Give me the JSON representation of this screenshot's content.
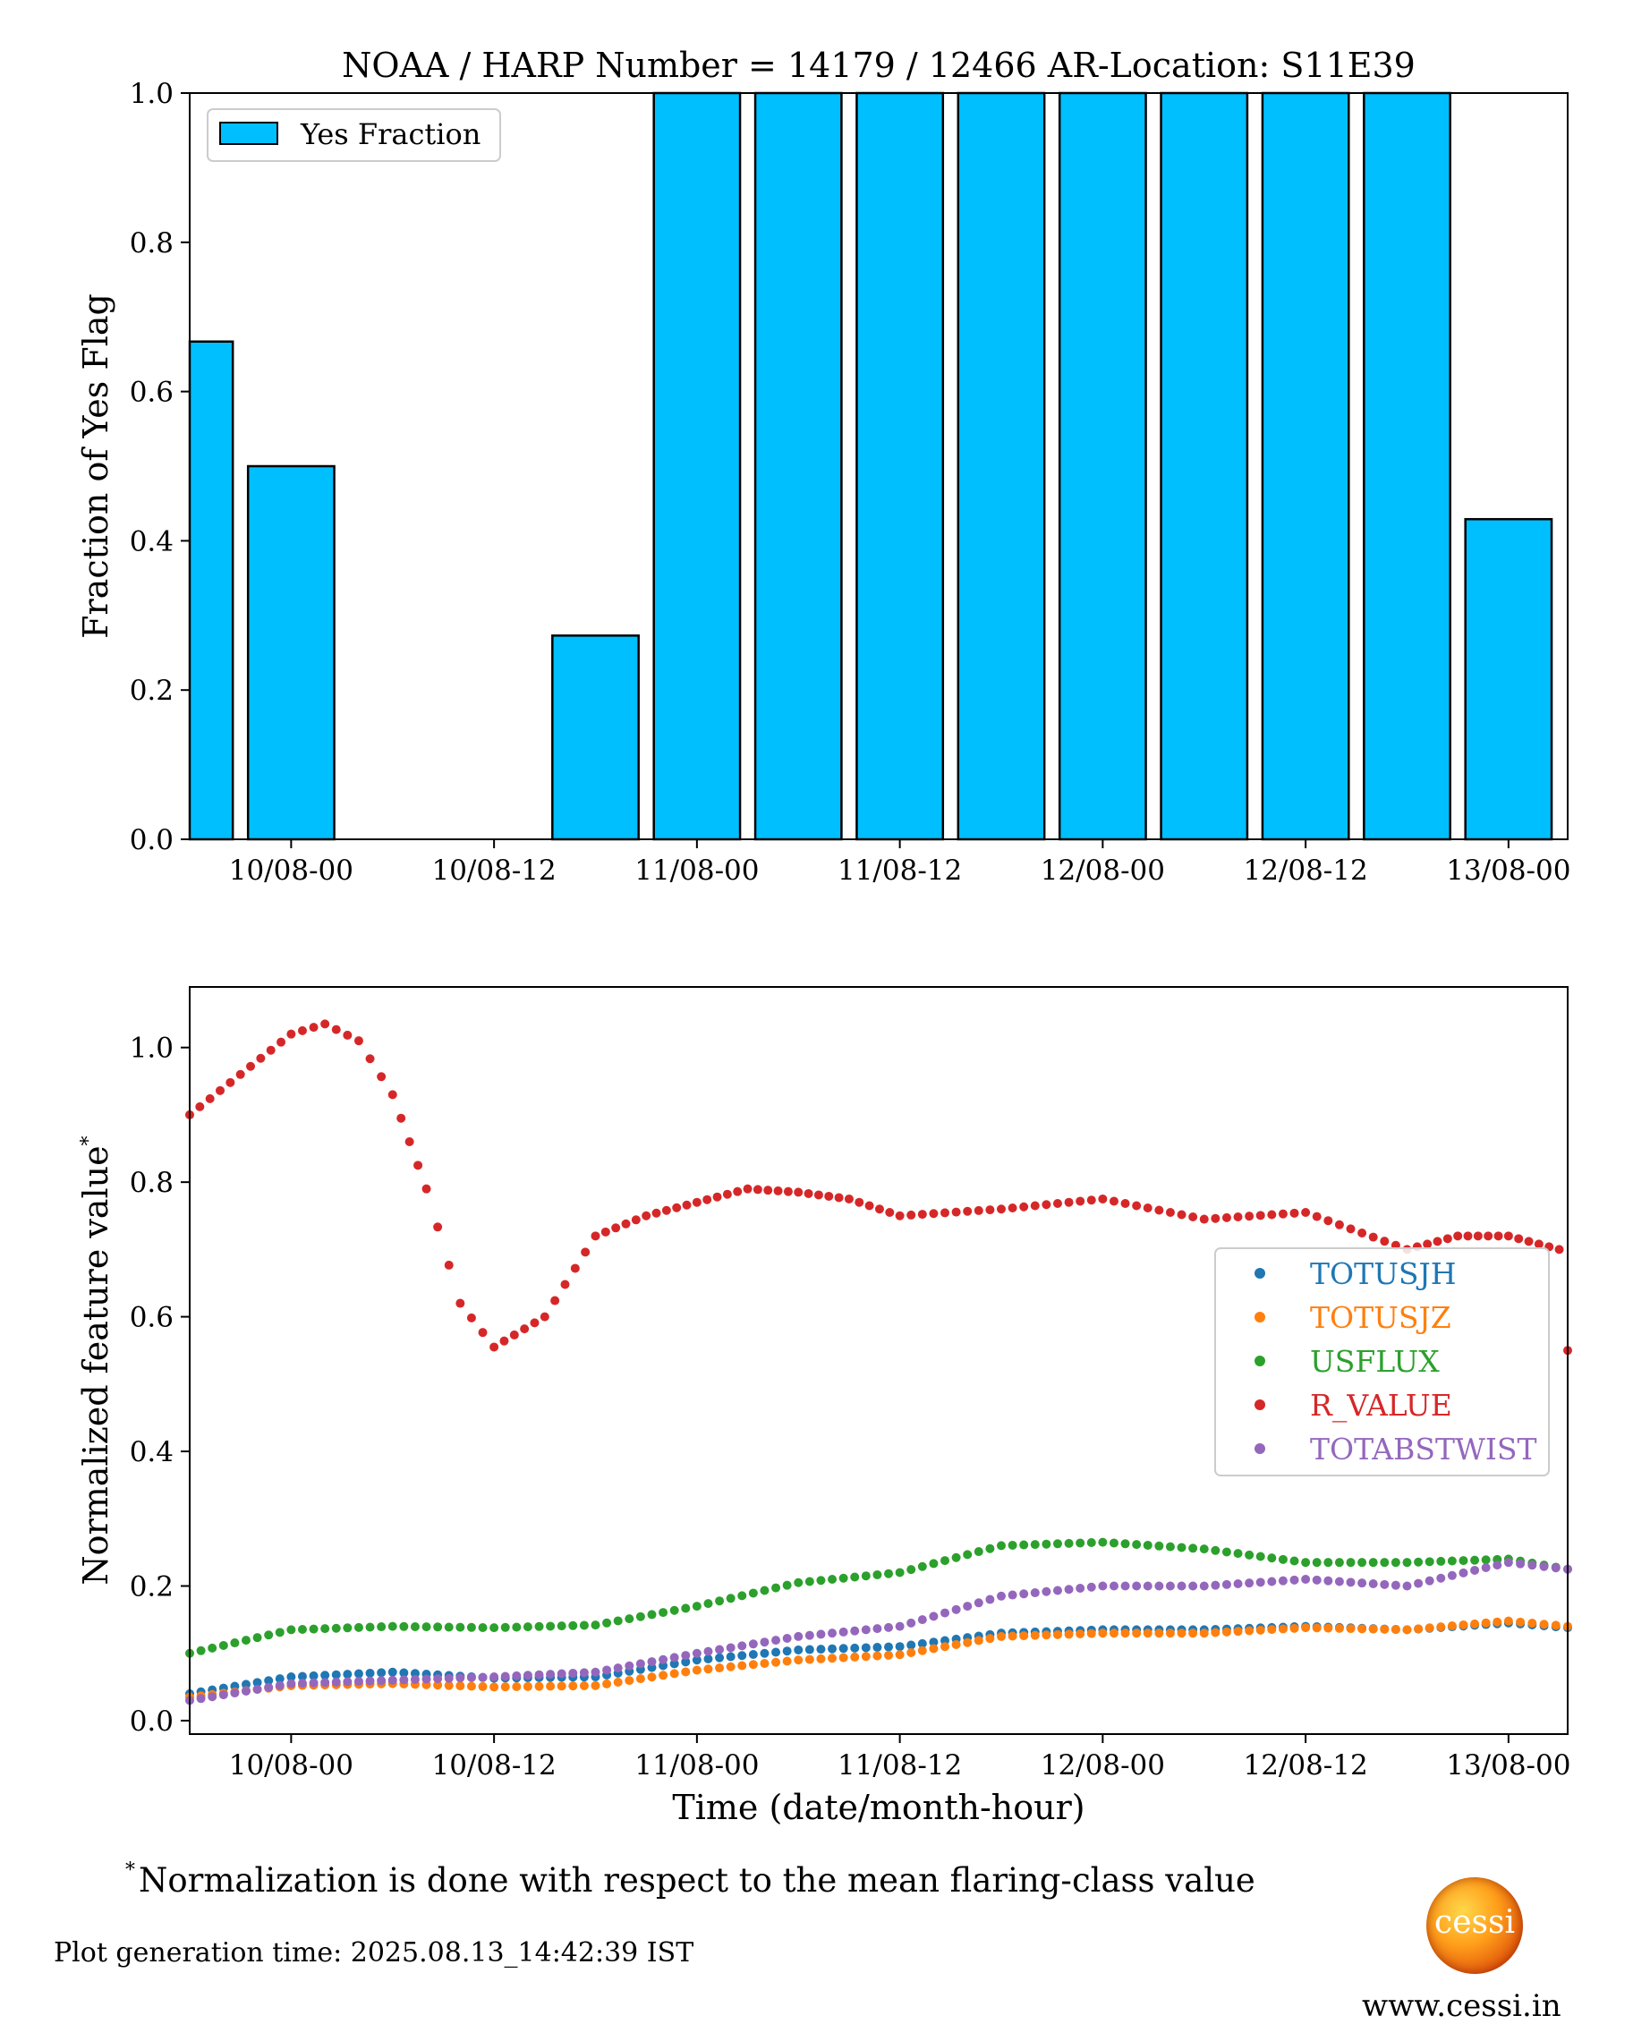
{
  "chart_data": [
    {
      "type": "bar",
      "title": "NOAA / HARP Number = 14179 / 12466      AR-Location: S11E39",
      "xlabel": "",
      "ylabel": "Fraction of Yes Flag",
      "ylim": [
        0,
        1.0
      ],
      "x_start": "2025-08-09T18:00",
      "x_end": "2025-08-13T03:30",
      "xtick_labels": [
        "10/08-00",
        "10/08-12",
        "11/08-00",
        "11/08-12",
        "12/08-00",
        "12/08-12",
        "13/08-00"
      ],
      "ytick_labels": [
        "0.0",
        "0.2",
        "0.4",
        "0.6",
        "0.8",
        "1.0"
      ],
      "legend": {
        "position": "top-left",
        "entries": [
          "Yes Fraction"
        ]
      },
      "bar_color": "#00bfff",
      "categories": [
        "2025-08-09T18:00",
        "2025-08-10T00:00",
        "2025-08-10T06:00",
        "2025-08-10T12:00",
        "2025-08-10T18:00",
        "2025-08-11T00:00",
        "2025-08-11T06:00",
        "2025-08-11T12:00",
        "2025-08-11T18:00",
        "2025-08-12T00:00",
        "2025-08-12T06:00",
        "2025-08-12T12:00",
        "2025-08-12T18:00",
        "2025-08-13T00:00"
      ],
      "series": [
        {
          "name": "Yes Fraction",
          "values": [
            0.667,
            0.5,
            0,
            0,
            0.273,
            1.0,
            1.0,
            1.0,
            1.0,
            1.0,
            1.0,
            1.0,
            1.0,
            0.429
          ]
        }
      ]
    },
    {
      "type": "scatter",
      "xlabel": "Time (date/month-hour)",
      "ylabel": "Normalized feature value",
      "ylabel_superscript": "*",
      "ylim": [
        -0.02,
        1.09
      ],
      "x_start": "2025-08-09T18:00",
      "x_end": "2025-08-13T03:30",
      "xtick_labels": [
        "10/08-00",
        "10/08-12",
        "11/08-00",
        "11/08-12",
        "12/08-00",
        "12/08-12",
        "13/08-00"
      ],
      "ytick_labels": [
        "0.0",
        "0.2",
        "0.4",
        "0.6",
        "0.8",
        "1.0"
      ],
      "legend": {
        "position": "center-right",
        "entries": [
          "TOTUSJH",
          "TOTUSJZ",
          "USFLUX",
          "R_VALUE",
          "TOTABSTWIST"
        ]
      },
      "series": [
        {
          "name": "TOTUSJH",
          "color": "#1f77b4",
          "x": [
            "2025-08-09T18:00",
            "2025-08-10T00:00",
            "2025-08-10T06:00",
            "2025-08-10T12:00",
            "2025-08-10T18:00",
            "2025-08-11T00:00",
            "2025-08-11T06:00",
            "2025-08-11T12:00",
            "2025-08-11T18:00",
            "2025-08-12T00:00",
            "2025-08-12T06:00",
            "2025-08-12T12:00",
            "2025-08-12T18:00",
            "2025-08-13T00:00",
            "2025-08-13T03:30"
          ],
          "y": [
            0.04,
            0.065,
            0.072,
            0.063,
            0.065,
            0.09,
            0.105,
            0.11,
            0.13,
            0.135,
            0.135,
            0.14,
            0.135,
            0.145,
            0.138
          ]
        },
        {
          "name": "TOTUSJZ",
          "color": "#ff7f0e",
          "x": [
            "2025-08-09T18:00",
            "2025-08-10T00:00",
            "2025-08-10T06:00",
            "2025-08-10T12:00",
            "2025-08-10T18:00",
            "2025-08-11T00:00",
            "2025-08-11T06:00",
            "2025-08-11T12:00",
            "2025-08-11T18:00",
            "2025-08-12T00:00",
            "2025-08-12T06:00",
            "2025-08-12T12:00",
            "2025-08-12T18:00",
            "2025-08-13T00:00",
            "2025-08-13T03:30"
          ],
          "y": [
            0.035,
            0.052,
            0.055,
            0.05,
            0.052,
            0.075,
            0.09,
            0.098,
            0.125,
            0.13,
            0.13,
            0.138,
            0.135,
            0.148,
            0.14
          ]
        },
        {
          "name": "USFLUX",
          "color": "#2ca02c",
          "x": [
            "2025-08-09T18:00",
            "2025-08-10T00:00",
            "2025-08-10T06:00",
            "2025-08-10T12:00",
            "2025-08-10T18:00",
            "2025-08-11T00:00",
            "2025-08-11T06:00",
            "2025-08-11T12:00",
            "2025-08-11T18:00",
            "2025-08-12T00:00",
            "2025-08-12T06:00",
            "2025-08-12T12:00",
            "2025-08-12T18:00",
            "2025-08-13T00:00",
            "2025-08-13T03:30"
          ],
          "y": [
            0.1,
            0.135,
            0.14,
            0.138,
            0.142,
            0.17,
            0.205,
            0.22,
            0.26,
            0.265,
            0.255,
            0.235,
            0.235,
            0.24,
            0.225
          ]
        },
        {
          "name": "R_VALUE",
          "color": "#d62728",
          "x": [
            "2025-08-09T18:00",
            "2025-08-09T21:00",
            "2025-08-10T00:00",
            "2025-08-10T02:00",
            "2025-08-10T04:00",
            "2025-08-10T06:00",
            "2025-08-10T07:00",
            "2025-08-10T08:00",
            "2025-08-10T10:00",
            "2025-08-10T12:00",
            "2025-08-10T15:00",
            "2025-08-10T18:00",
            "2025-08-10T21:00",
            "2025-08-11T00:00",
            "2025-08-11T03:00",
            "2025-08-11T06:00",
            "2025-08-11T09:00",
            "2025-08-11T12:00",
            "2025-08-11T18:00",
            "2025-08-12T00:00",
            "2025-08-12T06:00",
            "2025-08-12T12:00",
            "2025-08-12T18:00",
            "2025-08-12T21:00",
            "2025-08-13T00:00",
            "2025-08-13T03:00",
            "2025-08-13T03:30"
          ],
          "y": [
            0.9,
            0.96,
            1.02,
            1.035,
            1.01,
            0.93,
            0.86,
            0.79,
            0.62,
            0.555,
            0.6,
            0.72,
            0.75,
            0.77,
            0.79,
            0.785,
            0.775,
            0.75,
            0.76,
            0.775,
            0.745,
            0.755,
            0.7,
            0.72,
            0.72,
            0.7,
            0.55
          ]
        },
        {
          "name": "TOTABSTWIST",
          "color": "#9467bd",
          "x": [
            "2025-08-09T18:00",
            "2025-08-10T00:00",
            "2025-08-10T06:00",
            "2025-08-10T12:00",
            "2025-08-10T18:00",
            "2025-08-11T00:00",
            "2025-08-11T06:00",
            "2025-08-11T12:00",
            "2025-08-11T18:00",
            "2025-08-12T00:00",
            "2025-08-12T06:00",
            "2025-08-12T12:00",
            "2025-08-12T18:00",
            "2025-08-13T00:00",
            "2025-08-13T03:30"
          ],
          "y": [
            0.03,
            0.055,
            0.06,
            0.065,
            0.072,
            0.1,
            0.125,
            0.14,
            0.185,
            0.2,
            0.2,
            0.21,
            0.2,
            0.235,
            0.225
          ]
        }
      ]
    }
  ],
  "footnote": {
    "marker": "*",
    "text": "Normalization is done with respect to the mean flaring-class value"
  },
  "generation_time": "Plot generation time: 2025.08.13_14:42:39 IST",
  "logo_text": "cessi",
  "website": "www.cessi.in"
}
